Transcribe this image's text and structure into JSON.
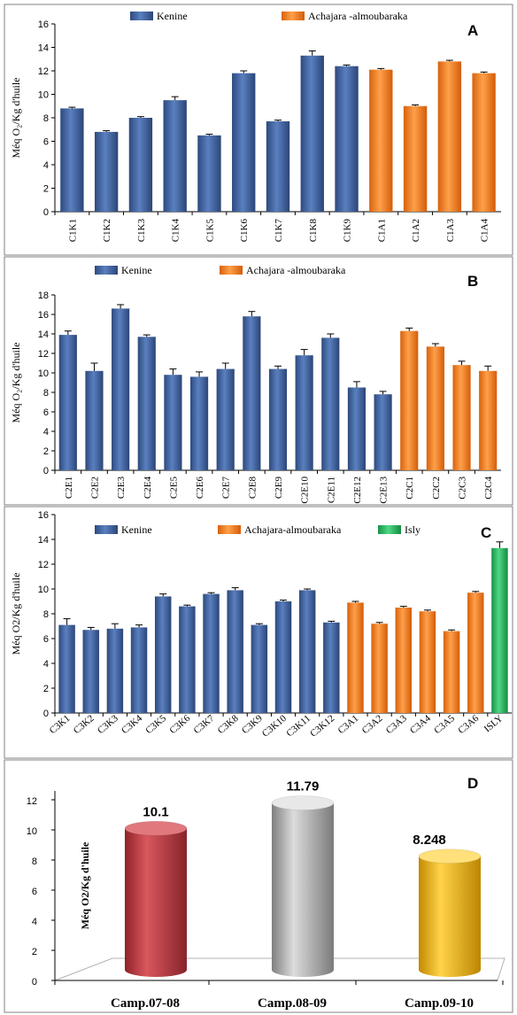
{
  "chart_data": [
    {
      "panel": "A",
      "type": "bar",
      "ylabel": "Méq O₂/Kg d'huile",
      "ylim": [
        0,
        16
      ],
      "yticks": [
        0,
        2,
        4,
        6,
        8,
        10,
        12,
        14,
        16
      ],
      "error_bars": true,
      "legend": [
        "Kenine",
        "Achajara -almoubaraka"
      ],
      "series_colors": [
        "#3d5f9b",
        "#f07d1e"
      ],
      "categories": [
        "C1K1",
        "C1K2",
        "C1K3",
        "C1K4",
        "C1K5",
        "C1K6",
        "C1K7",
        "C1K8",
        "C1K9",
        "C1A1",
        "C1A2",
        "C1A3",
        "C1A4"
      ],
      "values": [
        8.8,
        6.8,
        8.0,
        9.5,
        6.5,
        11.8,
        7.7,
        13.3,
        12.4,
        12.1,
        9.0,
        12.8,
        11.8
      ],
      "errors": [
        0.1,
        0.1,
        0.1,
        0.3,
        0.1,
        0.2,
        0.1,
        0.4,
        0.1,
        0.1,
        0.1,
        0.1,
        0.1
      ],
      "groups": [
        0,
        0,
        0,
        0,
        0,
        0,
        0,
        0,
        0,
        1,
        1,
        1,
        1
      ]
    },
    {
      "panel": "B",
      "type": "bar",
      "ylabel": "Méq O₂/Kg d'huile",
      "ylim": [
        0,
        18
      ],
      "yticks": [
        0,
        2,
        4,
        6,
        8,
        10,
        12,
        14,
        16,
        18
      ],
      "error_bars": true,
      "legend": [
        "Kenine",
        "Achajara -almoubaraka"
      ],
      "series_colors": [
        "#3d5f9b",
        "#f07d1e"
      ],
      "categories": [
        "C2E1",
        "C2E2",
        "C2E3",
        "C2E4",
        "C2E5",
        "C2E6",
        "C2E7",
        "C2E8",
        "C2E9",
        "C2E10",
        "C2E11",
        "C2E12",
        "C2E13",
        "C2C1",
        "C2C2",
        "C2C3",
        "C2C4"
      ],
      "values": [
        13.9,
        10.2,
        16.6,
        13.7,
        9.8,
        9.6,
        10.4,
        15.8,
        10.4,
        11.8,
        13.6,
        8.5,
        7.8,
        14.3,
        12.7,
        10.8,
        10.2
      ],
      "errors": [
        0.4,
        0.8,
        0.4,
        0.2,
        0.6,
        0.5,
        0.6,
        0.5,
        0.3,
        0.6,
        0.4,
        0.6,
        0.3,
        0.3,
        0.3,
        0.4,
        0.5
      ],
      "groups": [
        0,
        0,
        0,
        0,
        0,
        0,
        0,
        0,
        0,
        0,
        0,
        0,
        0,
        1,
        1,
        1,
        1
      ]
    },
    {
      "panel": "C",
      "type": "bar",
      "ylabel": "Méq O2/Kg d'huile",
      "ylim": [
        0,
        16
      ],
      "yticks": [
        0,
        2,
        4,
        6,
        8,
        10,
        12,
        14,
        16
      ],
      "error_bars": true,
      "legend": [
        "Kenine",
        "Achajara-almoubaraka",
        "Isly"
      ],
      "series_colors": [
        "#3d5f9b",
        "#f07d1e",
        "#27b35a"
      ],
      "categories": [
        "C3K1",
        "C3K2",
        "C3K3",
        "C3K4",
        "C3K5",
        "C3K6",
        "C3K7",
        "C3K8",
        "C3K9",
        "C3K10",
        "C3K11",
        "C3K12",
        "C3A1",
        "C3A2",
        "C3A3",
        "C3A4",
        "C3A5",
        "C3A6",
        "ISLY"
      ],
      "values": [
        7.1,
        6.7,
        6.8,
        6.9,
        9.4,
        8.6,
        9.6,
        9.9,
        7.1,
        9.0,
        9.9,
        7.3,
        8.9,
        7.2,
        8.5,
        8.2,
        6.6,
        9.7,
        13.3
      ],
      "errors": [
        0.5,
        0.2,
        0.4,
        0.2,
        0.2,
        0.1,
        0.1,
        0.2,
        0.1,
        0.1,
        0.1,
        0.1,
        0.1,
        0.1,
        0.1,
        0.1,
        0.1,
        0.1,
        0.5
      ],
      "groups": [
        0,
        0,
        0,
        0,
        0,
        0,
        0,
        0,
        0,
        0,
        0,
        0,
        1,
        1,
        1,
        1,
        1,
        1,
        2
      ]
    },
    {
      "panel": "D",
      "type": "bar",
      "style": "3d-cylinder",
      "ylabel": "Méq O2/Kg d'huile",
      "ylim": [
        0,
        12
      ],
      "yticks": [
        0,
        2,
        4,
        6,
        8,
        10,
        12
      ],
      "categories": [
        "Camp.07-08",
        "Camp.08-09",
        "Camp.09-10"
      ],
      "values": [
        10.1,
        11.79,
        8.248
      ],
      "data_labels": [
        "10.1",
        "11.79",
        "8.248"
      ],
      "colors": [
        "#b8373d",
        "#a6a6a6",
        "#f2b400"
      ]
    }
  ]
}
